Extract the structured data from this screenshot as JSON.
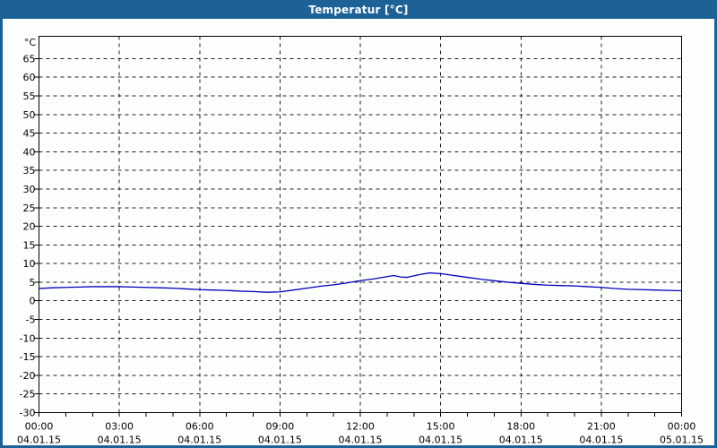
{
  "window": {
    "title": "Temperatur [°C]",
    "title_bar_color": "#1d6296",
    "background": "#fdfffd"
  },
  "chart_data": {
    "type": "line",
    "title": "Temperatur [°C]",
    "ylabel_unit": "°C",
    "xlabel": "",
    "ylim": [
      -30,
      71
    ],
    "y_ticks": [
      65,
      60,
      55,
      50,
      45,
      40,
      35,
      30,
      25,
      20,
      15,
      10,
      5,
      0,
      -5,
      -10,
      -15,
      -20,
      -25,
      -30
    ],
    "grid": true,
    "grid_color": "#1c1c1c",
    "axis_color": "#000000",
    "x_axis": {
      "xlim_hours": [
        0,
        24
      ],
      "major_interval_hours": 3,
      "minor_interval_hours": 1,
      "major_labels": [
        {
          "time": "00:00",
          "date": "04.01.15"
        },
        {
          "time": "03:00",
          "date": "04.01.15"
        },
        {
          "time": "06:00",
          "date": "04.01.15"
        },
        {
          "time": "09:00",
          "date": "04.01.15"
        },
        {
          "time": "12:00",
          "date": "04.01.15"
        },
        {
          "time": "15:00",
          "date": "04.01.15"
        },
        {
          "time": "18:00",
          "date": "04.01.15"
        },
        {
          "time": "21:00",
          "date": "04.01.15"
        },
        {
          "time": "00:00",
          "date": "05.01.15"
        }
      ]
    },
    "series": [
      {
        "name": "Temperatur",
        "color": "#0000bf",
        "points": [
          [
            0,
            3.3
          ],
          [
            0.5,
            3.5
          ],
          [
            1,
            3.6
          ],
          [
            1.5,
            3.7
          ],
          [
            2,
            3.8
          ],
          [
            2.5,
            3.8
          ],
          [
            3,
            3.8
          ],
          [
            3.5,
            3.7
          ],
          [
            4,
            3.6
          ],
          [
            4.5,
            3.5
          ],
          [
            5,
            3.4
          ],
          [
            5.5,
            3.2
          ],
          [
            6,
            3.0
          ],
          [
            6.5,
            2.9
          ],
          [
            7,
            2.8
          ],
          [
            7.5,
            2.6
          ],
          [
            8,
            2.5
          ],
          [
            8.5,
            2.3
          ],
          [
            9,
            2.4
          ],
          [
            9.5,
            2.9
          ],
          [
            10,
            3.4
          ],
          [
            10.5,
            3.9
          ],
          [
            11,
            4.3
          ],
          [
            11.5,
            4.8
          ],
          [
            12,
            5.4
          ],
          [
            12.5,
            5.9
          ],
          [
            13,
            6.5
          ],
          [
            13.25,
            6.8
          ],
          [
            13.5,
            6.4
          ],
          [
            13.75,
            6.3
          ],
          [
            14,
            6.7
          ],
          [
            14.25,
            7.1
          ],
          [
            14.6,
            7.5
          ],
          [
            15,
            7.3
          ],
          [
            15.5,
            6.8
          ],
          [
            16,
            6.3
          ],
          [
            16.5,
            5.8
          ],
          [
            17,
            5.4
          ],
          [
            17.5,
            5.0
          ],
          [
            18,
            4.7
          ],
          [
            18.5,
            4.4
          ],
          [
            19,
            4.2
          ],
          [
            19.5,
            4.1
          ],
          [
            20,
            4.0
          ],
          [
            20.5,
            3.8
          ],
          [
            21,
            3.6
          ],
          [
            21.5,
            3.3
          ],
          [
            22,
            3.1
          ],
          [
            22.5,
            3.0
          ],
          [
            23,
            2.9
          ],
          [
            23.5,
            2.8
          ],
          [
            24,
            2.7
          ]
        ]
      }
    ]
  }
}
